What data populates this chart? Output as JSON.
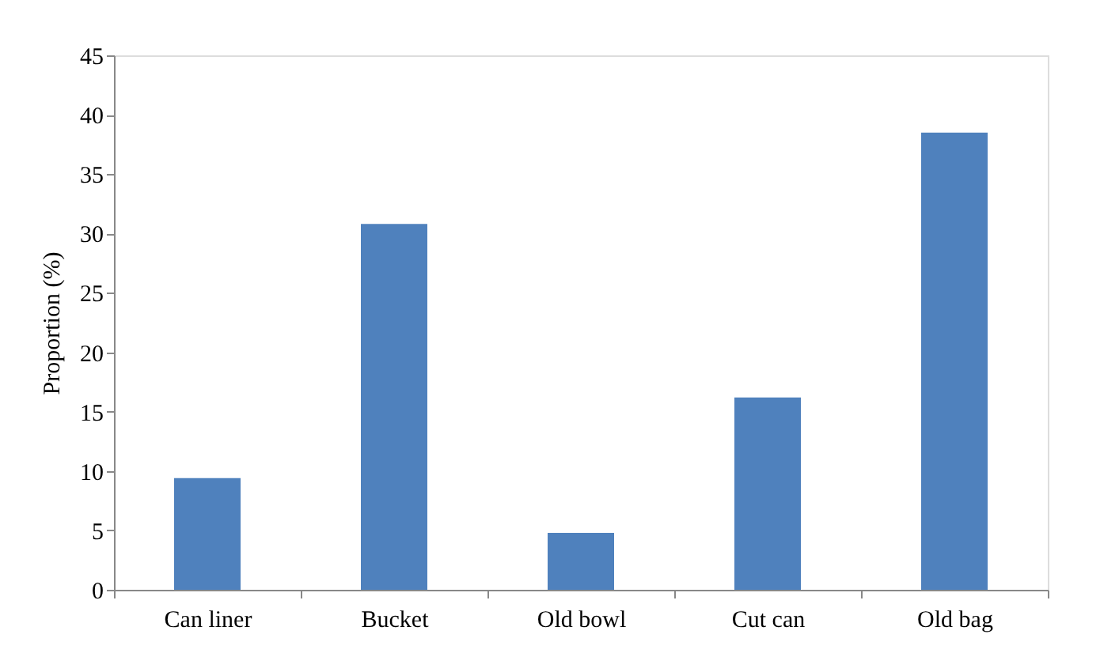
{
  "chart_data": {
    "type": "bar",
    "ylabel": "Proportion (%)",
    "categories": [
      "Can liner",
      "Bucket",
      "Old bowl",
      "Cut can",
      "Old bag"
    ],
    "values": [
      9.4,
      30.8,
      4.8,
      16.2,
      38.5
    ],
    "color": "#4f81bd",
    "ylim": [
      0,
      45
    ],
    "yticks": [
      0,
      5,
      10,
      15,
      20,
      25,
      30,
      35,
      40,
      45
    ],
    "grid": false
  }
}
